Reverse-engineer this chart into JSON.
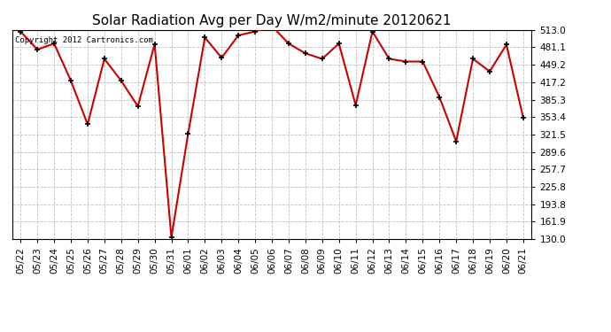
{
  "title": "Solar Radiation Avg per Day W/m2/minute 20120621",
  "copyright_text": "Copyright 2012 Cartronics.com",
  "dates": [
    "05/22",
    "05/23",
    "05/24",
    "05/25",
    "05/26",
    "05/27",
    "05/28",
    "05/29",
    "05/30",
    "05/31",
    "06/01",
    "06/02",
    "06/03",
    "06/04",
    "06/05",
    "06/06",
    "06/07",
    "06/08",
    "06/09",
    "06/10",
    "06/11",
    "06/12",
    "06/13",
    "06/14",
    "06/15",
    "06/16",
    "06/17",
    "06/18",
    "06/19",
    "06/20",
    "06/21"
  ],
  "values": [
    510,
    477,
    488,
    420,
    340,
    460,
    420,
    373,
    487,
    133,
    323,
    499,
    462,
    503,
    510,
    520,
    488,
    470,
    460,
    488,
    375,
    510,
    460,
    455,
    455,
    390,
    309,
    460,
    437,
    486,
    352
  ],
  "line_color": "#cc0000",
  "marker_color": "#000000",
  "bg_color": "#ffffff",
  "plot_bg_color": "#ffffff",
  "grid_color": "#c0c0c0",
  "ylim_min": 130,
  "ylim_max": 513,
  "yticks": [
    130.0,
    161.9,
    193.8,
    225.8,
    257.7,
    289.6,
    321.5,
    353.4,
    385.3,
    417.2,
    449.2,
    481.1,
    513.0
  ],
  "title_fontsize": 11,
  "tick_fontsize": 7.5,
  "copyright_fontsize": 6.5
}
